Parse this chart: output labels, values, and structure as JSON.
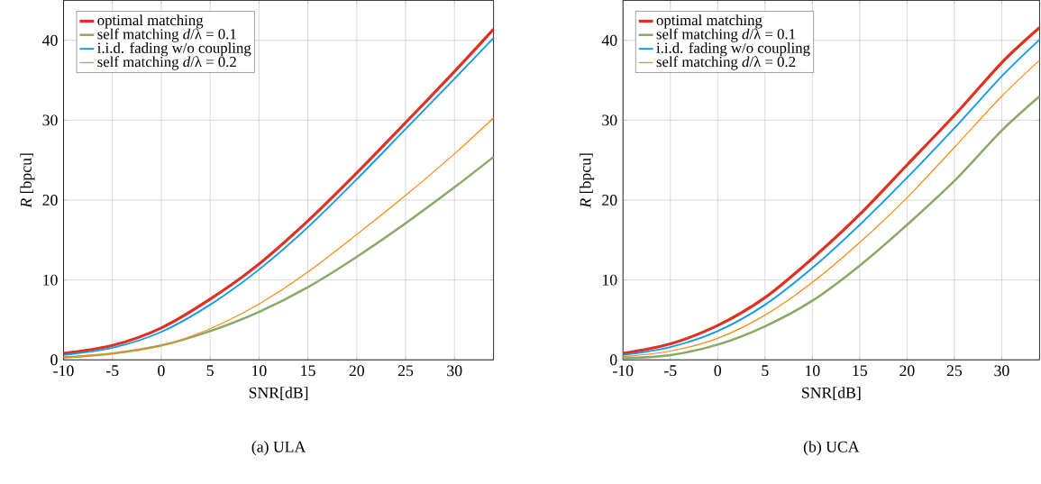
{
  "chart_data": [
    {
      "type": "line",
      "xlabel": "SNR[dB]",
      "ylabel": "*R* [bpcu]",
      "annotations": [
        "(a) ULA"
      ],
      "x": [
        -10,
        -5,
        0,
        5,
        10,
        15,
        20,
        25,
        30,
        34
      ],
      "xlim": [
        -10,
        34
      ],
      "ylim": [
        0,
        45
      ],
      "xticks": [
        -10,
        -5,
        0,
        5,
        10,
        15,
        20,
        25,
        30
      ],
      "yticks": [
        0,
        10,
        20,
        30,
        40
      ],
      "grid": true,
      "legend": "top left",
      "line_style": "solid",
      "series": [
        {
          "name": "optimal matching",
          "color": "#e03020",
          "values": [
            0.8,
            1.8,
            4.0,
            7.6,
            12.0,
            17.4,
            23.4,
            29.7,
            36.1,
            41.4
          ]
        },
        {
          "name": "self matching *d*/λ = 0.1",
          "color": "#88aa66",
          "values": [
            0.3,
            0.8,
            1.8,
            3.6,
            6.0,
            9.1,
            12.9,
            17.1,
            21.6,
            25.4
          ]
        },
        {
          "name": "i.i.d. fading w/o coupling",
          "color": "#1199ee",
          "values": [
            0.6,
            1.5,
            3.5,
            6.9,
            11.3,
            16.6,
            22.6,
            28.9,
            35.2,
            40.3
          ]
        },
        {
          "name": "self matching *d*/λ = 0.2",
          "color": "#ff8811",
          "values": [
            0.3,
            0.8,
            1.8,
            3.9,
            7.0,
            11.0,
            15.7,
            20.6,
            25.8,
            30.3
          ]
        }
      ]
    },
    {
      "type": "line",
      "xlabel": "SNR[dB]",
      "ylabel": "*R* [bpcu]",
      "annotations": [
        "(b) UCA"
      ],
      "x": [
        -10,
        -5,
        0,
        5,
        10,
        15,
        20,
        25,
        30,
        34
      ],
      "xlim": [
        -10,
        34
      ],
      "ylim": [
        0,
        45
      ],
      "xticks": [
        -10,
        -5,
        0,
        5,
        10,
        15,
        20,
        25,
        30
      ],
      "yticks": [
        0,
        10,
        20,
        30,
        40
      ],
      "grid": true,
      "legend": "top left",
      "line_style": "solid",
      "series": [
        {
          "name": "optimal matching",
          "color": "#e03020",
          "values": [
            0.8,
            2.0,
            4.3,
            7.8,
            12.7,
            18.2,
            24.4,
            30.6,
            37.2,
            41.6
          ]
        },
        {
          "name": "self matching *d*/λ = 0.1",
          "color": "#88aa66",
          "values": [
            0.2,
            0.6,
            1.9,
            4.2,
            7.4,
            11.8,
            16.9,
            22.4,
            28.7,
            33.0
          ]
        },
        {
          "name": "i.i.d. fading w/o coupling",
          "color": "#1199ee",
          "values": [
            0.6,
            1.6,
            3.6,
            6.9,
            11.5,
            16.9,
            22.8,
            29.0,
            35.5,
            40.1
          ]
        },
        {
          "name": "self matching *d*/λ = 0.2",
          "color": "#ff8811",
          "values": [
            0.4,
            1.1,
            2.7,
            5.6,
            9.7,
            14.7,
            20.3,
            26.6,
            33.0,
            37.5
          ]
        }
      ]
    }
  ]
}
